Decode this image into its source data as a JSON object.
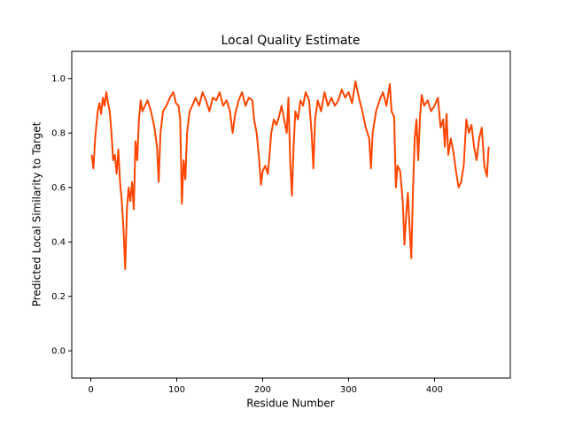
{
  "chart_data": {
    "type": "line",
    "title": "Local Quality Estimate",
    "x_label": "Residue Number",
    "y_label": "Predicted Local Similarity to Target",
    "xlim": [
      -22.2,
      488.2
    ],
    "ylim": [
      -0.1,
      1.1
    ],
    "xticks": [
      0,
      100,
      200,
      300,
      400
    ],
    "yticks": [
      {
        "value": 0,
        "label": "0.0"
      },
      0.2,
      0.4,
      0.6,
      0.8,
      {
        "value": 1,
        "label": "1.0"
      }
    ],
    "grid": false,
    "series": [
      {
        "color": "#ff4500",
        "x": [
          1,
          3,
          5,
          8,
          10,
          12,
          14,
          16,
          18,
          20,
          22,
          24,
          26,
          28,
          30,
          32,
          34,
          36,
          38,
          40,
          42,
          44,
          46,
          48,
          50,
          52,
          54,
          56,
          58,
          60,
          63,
          66,
          70,
          74,
          77,
          79,
          81,
          84,
          88,
          92,
          96,
          99,
          102,
          104,
          106,
          108,
          110,
          112,
          115,
          118,
          122,
          126,
          130,
          134,
          138,
          142,
          146,
          150,
          154,
          158,
          162,
          165,
          168,
          172,
          176,
          180,
          184,
          188,
          190,
          193,
          196,
          198,
          200,
          203,
          206,
          208,
          210,
          213,
          216,
          219,
          222,
          225,
          228,
          230,
          232,
          234,
          236,
          238,
          241,
          244,
          247,
          250,
          254,
          257,
          259,
          261,
          264,
          268,
          272,
          276,
          280,
          284,
          288,
          292,
          296,
          300,
          304,
          308,
          312,
          316,
          320,
          324,
          326,
          328,
          332,
          336,
          340,
          344,
          348,
          350,
          353,
          355,
          357,
          360,
          363,
          365,
          367,
          369,
          371,
          373,
          375,
          377,
          379,
          381,
          383,
          385,
          388,
          392,
          396,
          400,
          404,
          407,
          410,
          412,
          414,
          416,
          419,
          422,
          425,
          428,
          431,
          434,
          437,
          440,
          443,
          446,
          449,
          452,
          455,
          458,
          461,
          463
        ],
        "values": [
          0.72,
          0.67,
          0.78,
          0.88,
          0.91,
          0.87,
          0.93,
          0.9,
          0.95,
          0.91,
          0.88,
          0.8,
          0.7,
          0.72,
          0.65,
          0.74,
          0.62,
          0.55,
          0.45,
          0.3,
          0.52,
          0.6,
          0.55,
          0.62,
          0.52,
          0.77,
          0.7,
          0.85,
          0.92,
          0.88,
          0.9,
          0.92,
          0.88,
          0.82,
          0.75,
          0.62,
          0.8,
          0.88,
          0.9,
          0.93,
          0.95,
          0.91,
          0.9,
          0.85,
          0.54,
          0.7,
          0.63,
          0.8,
          0.88,
          0.9,
          0.93,
          0.9,
          0.95,
          0.92,
          0.88,
          0.93,
          0.92,
          0.95,
          0.9,
          0.92,
          0.88,
          0.8,
          0.87,
          0.92,
          0.95,
          0.9,
          0.93,
          0.92,
          0.85,
          0.8,
          0.7,
          0.61,
          0.66,
          0.68,
          0.65,
          0.72,
          0.8,
          0.85,
          0.83,
          0.86,
          0.9,
          0.85,
          0.8,
          0.93,
          0.7,
          0.57,
          0.75,
          0.88,
          0.85,
          0.92,
          0.9,
          0.95,
          0.92,
          0.8,
          0.67,
          0.85,
          0.92,
          0.88,
          0.95,
          0.9,
          0.93,
          0.9,
          0.92,
          0.96,
          0.93,
          0.95,
          0.91,
          0.99,
          0.93,
          0.88,
          0.82,
          0.78,
          0.67,
          0.8,
          0.88,
          0.92,
          0.95,
          0.9,
          0.98,
          0.88,
          0.86,
          0.6,
          0.68,
          0.66,
          0.55,
          0.39,
          0.5,
          0.58,
          0.45,
          0.34,
          0.6,
          0.78,
          0.85,
          0.7,
          0.85,
          0.94,
          0.9,
          0.92,
          0.88,
          0.9,
          0.93,
          0.82,
          0.85,
          0.75,
          0.87,
          0.72,
          0.78,
          0.73,
          0.66,
          0.6,
          0.62,
          0.68,
          0.85,
          0.8,
          0.83,
          0.75,
          0.7,
          0.78,
          0.82,
          0.68,
          0.64,
          0.75
        ]
      }
    ]
  }
}
